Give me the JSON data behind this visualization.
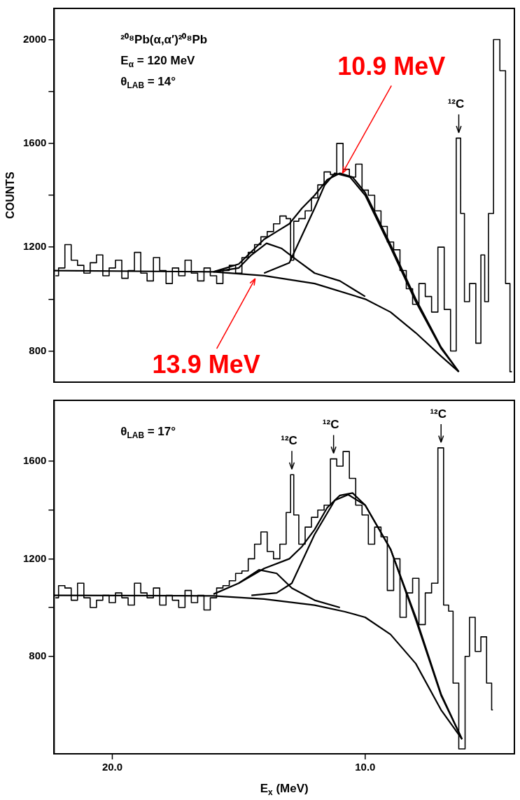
{
  "chart_data": [
    {
      "type": "line",
      "ylabel": "COUNTS",
      "xlim": [
        22.3,
        4.1
      ],
      "ylim": [
        680,
        2120
      ],
      "yticks": [
        800,
        {
          "value": 1000,
          "label": null
        },
        1200,
        {
          "value": 1400,
          "label": null
        },
        1600,
        {
          "value": 1800,
          "label": null
        },
        2000
      ],
      "tick_labels": "y",
      "grid": false,
      "legend": false,
      "marker": "none",
      "annotations": [
        "²⁰⁸Pb(α,α′)²⁰⁸Pb",
        "E$_{α}$ = 120 MeV",
        "θ$_{LAB}$ = 14°",
        {
          "text": "10.9 MeV",
          "x": 10.9,
          "y": 1485
        },
        {
          "text": "13.9 MeV",
          "x": 14.35,
          "y": 1079
        },
        {
          "text": "¹²C",
          "x": 6.3,
          "y": 1620
        }
      ],
      "series": [
        {
          "type": "step",
          "color": "#000000",
          "x": [
            22.25,
            22.0,
            21.75,
            21.5,
            21.25,
            21.0,
            20.75,
            20.5,
            20.25,
            20.0,
            19.75,
            19.5,
            19.25,
            19.0,
            18.75,
            18.5,
            18.25,
            18.0,
            17.75,
            17.5,
            17.25,
            17.0,
            16.75,
            16.5,
            16.25,
            16.0,
            15.75,
            15.5,
            15.25,
            15.0,
            14.75,
            14.5,
            14.25,
            14.0,
            13.75,
            13.5,
            13.25,
            13.0,
            12.9,
            12.75,
            12.5,
            12.25,
            12.0,
            11.75,
            11.5,
            11.25,
            11.0,
            10.75,
            10.5,
            10.25,
            10.0,
            9.75,
            9.5,
            9.25,
            9.0,
            8.75,
            8.5,
            8.25,
            8.0,
            7.75,
            7.5,
            7.25,
            7.0,
            6.75,
            6.5,
            6.3,
            6.15,
            6.0,
            5.75,
            5.5,
            5.35,
            5.2,
            5.05,
            4.8,
            4.55,
            4.35,
            4.2
          ],
          "values": [
            1090,
            1120,
            1210,
            1150,
            1130,
            1100,
            1140,
            1170,
            1090,
            1120,
            1150,
            1080,
            1110,
            1180,
            1100,
            1070,
            1160,
            1110,
            1060,
            1120,
            1090,
            1150,
            1100,
            1070,
            1120,
            1090,
            1060,
            1110,
            1130,
            1100,
            1160,
            1180,
            1210,
            1240,
            1260,
            1290,
            1320,
            1310,
            1150,
            1300,
            1310,
            1340,
            1390,
            1440,
            1490,
            1480,
            1600,
            1500,
            1470,
            1520,
            1420,
            1400,
            1340,
            1280,
            1220,
            1190,
            1110,
            1040,
            980,
            1060,
            1010,
            950,
            1200,
            960,
            800,
            1620,
            1330,
            990,
            1060,
            830,
            1170,
            990,
            1330,
            2000,
            1880,
            1060,
            720
          ]
        },
        {
          "type": "line",
          "color": "#000000",
          "x": [
            22.3,
            16,
            14,
            12,
            10,
            9,
            8,
            7,
            6.3
          ],
          "values": [
            1110,
            1105,
            1090,
            1060,
            1000,
            950,
            870,
            780,
            720
          ]
        },
        {
          "type": "line",
          "color": "#000000",
          "x": [
            16,
            15,
            14.5,
            13.9,
            13.3,
            12.7,
            12,
            11,
            10
          ],
          "values": [
            1105,
            1120,
            1170,
            1215,
            1195,
            1150,
            1100,
            1070,
            1010
          ]
        },
        {
          "type": "line",
          "color": "#000000",
          "x": [
            14,
            13,
            12,
            11.6,
            11.2,
            10.6,
            10,
            9,
            8,
            7,
            6.3
          ],
          "values": [
            1100,
            1140,
            1350,
            1440,
            1485,
            1470,
            1400,
            1200,
            990,
            810,
            720
          ]
        },
        {
          "type": "line",
          "color": "#000000",
          "x": [
            16,
            15,
            14,
            13.5,
            13,
            12.5,
            12,
            11.5,
            11,
            10.5,
            10,
            9,
            8,
            7,
            6.3
          ],
          "values": [
            1105,
            1135,
            1230,
            1260,
            1290,
            1350,
            1400,
            1460,
            1485,
            1470,
            1410,
            1210,
            1000,
            815,
            720
          ]
        }
      ]
    },
    {
      "type": "line",
      "xlabel": "E$_{x}$ (MeV)",
      "xlim": [
        22.3,
        4.1
      ],
      "xticks": [
        {
          "value": 20,
          "label": "20.0"
        },
        {
          "value": 10,
          "label": "10.0"
        }
      ],
      "ylim": [
        400,
        1850
      ],
      "yticks": [
        800,
        {
          "value": 1000,
          "label": null
        },
        1200,
        {
          "value": 1400,
          "label": null
        },
        1600
      ],
      "grid": false,
      "legend": false,
      "marker": "none",
      "annotations": [
        "θ$_{LAB}$ = 17°",
        {
          "text": "¹²C",
          "x": 12.9,
          "y": 1545
        },
        {
          "text": "¹²C",
          "x": 11.25,
          "y": 1610
        },
        {
          "text": "¹²C",
          "x": 7.0,
          "y": 1655
        }
      ],
      "series": [
        {
          "type": "step",
          "color": "#000000",
          "x": [
            22.25,
            22.0,
            21.75,
            21.5,
            21.25,
            21.0,
            20.75,
            20.5,
            20.25,
            20.0,
            19.75,
            19.5,
            19.25,
            19.0,
            18.75,
            18.5,
            18.25,
            18.0,
            17.75,
            17.5,
            17.25,
            17.0,
            16.75,
            16.5,
            16.25,
            16.0,
            15.75,
            15.5,
            15.25,
            15.0,
            14.75,
            14.5,
            14.25,
            14.0,
            13.75,
            13.5,
            13.25,
            13.0,
            12.9,
            12.75,
            12.5,
            12.25,
            12.0,
            11.75,
            11.5,
            11.25,
            11.0,
            10.75,
            10.5,
            10.25,
            10.0,
            9.75,
            9.5,
            9.25,
            9.0,
            8.75,
            8.5,
            8.25,
            8.0,
            7.75,
            7.5,
            7.25,
            7.0,
            6.8,
            6.6,
            6.45,
            6.15,
            5.95,
            5.8,
            5.5,
            5.35,
            5.05,
            4.95
          ],
          "values": [
            1040,
            1090,
            1080,
            1030,
            1100,
            1040,
            1000,
            1030,
            1050,
            1020,
            1060,
            1040,
            1010,
            1100,
            1060,
            1040,
            1080,
            1010,
            1050,
            1030,
            1000,
            1070,
            1020,
            1050,
            990,
            1040,
            1080,
            1090,
            1110,
            1140,
            1150,
            1200,
            1260,
            1310,
            1230,
            1200,
            1260,
            1390,
            1545,
            1380,
            1260,
            1330,
            1370,
            1400,
            1420,
            1610,
            1580,
            1640,
            1530,
            1420,
            1380,
            1260,
            1330,
            1290,
            1070,
            1200,
            960,
            1060,
            1120,
            930,
            1060,
            1100,
            1655,
            1010,
            985,
            690,
            420,
            800,
            960,
            820,
            880,
            690,
            580
          ]
        },
        {
          "type": "line",
          "color": "#000000",
          "x": [
            22.3,
            16,
            14,
            12,
            10.8,
            10,
            9,
            8,
            7,
            6.17
          ],
          "values": [
            1050,
            1048,
            1035,
            1010,
            983,
            960,
            890,
            770,
            580,
            460
          ]
        },
        {
          "type": "line",
          "color": "#000000",
          "x": [
            16,
            15,
            14.2,
            13.5,
            12.9,
            12,
            11
          ],
          "values": [
            1055,
            1100,
            1155,
            1140,
            1080,
            1030,
            1000
          ]
        },
        {
          "type": "line",
          "color": "#000000",
          "x": [
            14.5,
            13.5,
            12.9,
            12,
            11.2,
            10.67,
            10,
            9,
            8,
            7,
            6.17
          ],
          "values": [
            1050,
            1060,
            1100,
            1300,
            1440,
            1463,
            1420,
            1240,
            950,
            640,
            460
          ]
        },
        {
          "type": "line",
          "color": "#000000",
          "x": [
            15,
            14,
            13,
            12.5,
            12,
            11.5,
            11,
            10.5,
            10,
            9,
            8,
            7,
            6.17
          ],
          "values": [
            1100,
            1160,
            1200,
            1250,
            1320,
            1410,
            1460,
            1470,
            1420,
            1240,
            960,
            645,
            460
          ]
        }
      ]
    }
  ]
}
